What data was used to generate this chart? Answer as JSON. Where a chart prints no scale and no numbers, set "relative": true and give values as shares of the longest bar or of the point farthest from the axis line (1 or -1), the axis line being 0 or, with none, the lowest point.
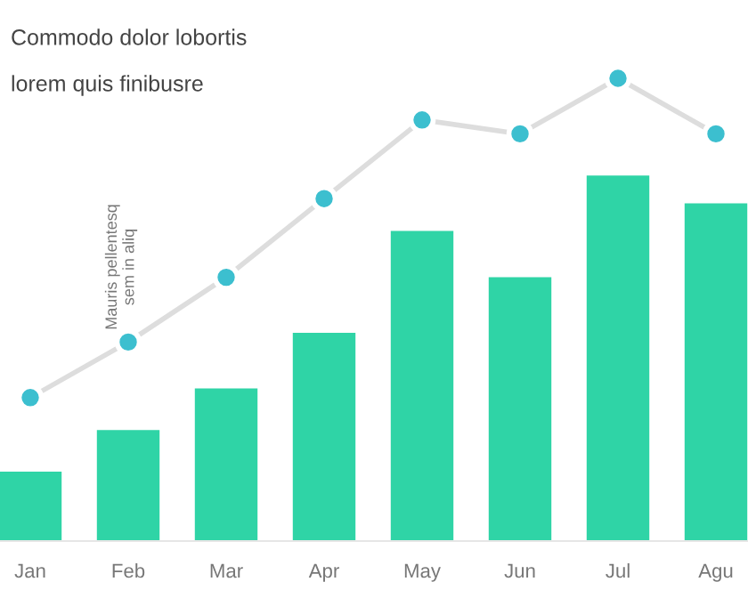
{
  "chart_data": {
    "type": "bar",
    "title": "Commodo dolor lobortis",
    "subtitle": "lorem quis finibusre",
    "annotations": [
      "Mauris pellentesq\nsem in aliq"
    ],
    "categories": [
      "Jan",
      "Feb",
      "Mar",
      "Apr",
      "May",
      "Jun",
      "Jul",
      "Agu"
    ],
    "relative": true,
    "grid": false,
    "series": [
      {
        "color": "#2fd4a6",
        "values": [
          0.15,
          0.24,
          0.33,
          0.45,
          0.67,
          0.57,
          0.79,
          0.73
        ]
      },
      {
        "type": "line",
        "color": "#3cbfcf",
        "marker": "circle",
        "values": [
          0.31,
          0.43,
          0.57,
          0.74,
          0.91,
          0.88,
          1,
          0.88
        ]
      }
    ]
  }
}
